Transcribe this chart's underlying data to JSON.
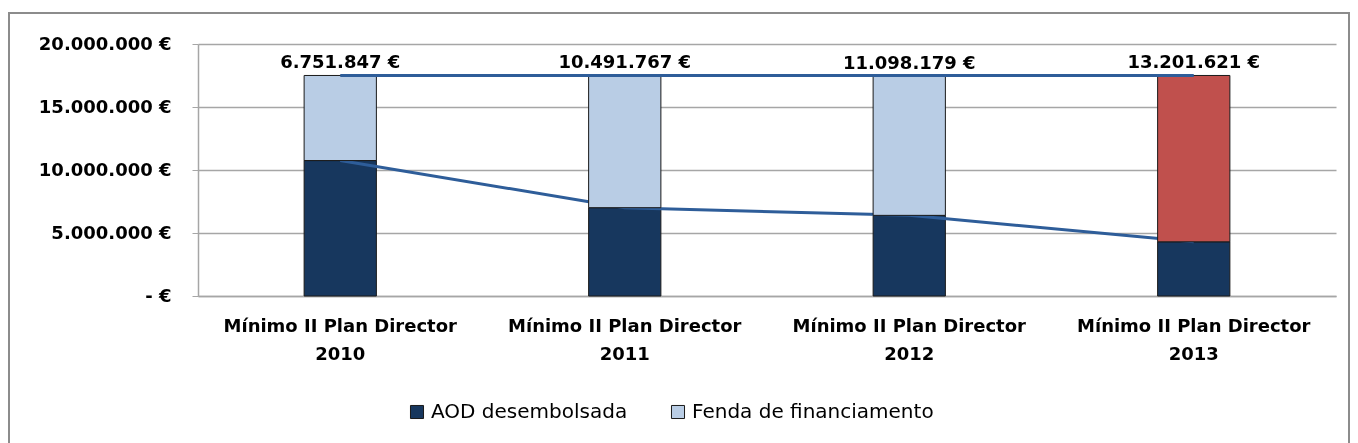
{
  "chart_data": {
    "type": "bar",
    "stacked": true,
    "categories": [
      "Mínimo II Plan Director 2010",
      "Mínimo II Plan Director 2011",
      "Mínimo II Plan Director 2012",
      "Mínimo II Plan Director 2013"
    ],
    "series": [
      {
        "name": "AOD desembolsada",
        "color": "#17375e",
        "values": [
          10750000,
          7010000,
          6400000,
          4300000
        ]
      },
      {
        "type": "line",
        "color": "#2e5d99",
        "values": [
          10750000,
          7010000,
          6400000,
          4300000
        ]
      },
      {
        "name": "Fenda de financiamento",
        "color": "#b9cde5",
        "colors": [
          "#b9cde5",
          "#b9cde5",
          "#b9cde5",
          "#c0504d"
        ],
        "values": [
          6751847,
          10491767,
          11098179,
          13201621
        ],
        "value_labels": [
          "6.751.847 €",
          "10.491.767 €",
          "11.098.179 €",
          "13.201.621 €"
        ]
      },
      {
        "type": "line",
        "color": "#2e5d99",
        "values": [
          17500000,
          17500000,
          17500000,
          17500000
        ]
      }
    ],
    "ylim": [
      0,
      20000000
    ],
    "yticks": [
      {
        "value": 0,
        "label": "- €"
      },
      {
        "value": 5000000,
        "label": "5.000.000 €"
      },
      {
        "value": 10000000,
        "label": "10.000.000 €"
      },
      {
        "value": 15000000,
        "label": "15.000.000 €"
      },
      {
        "value": 20000000,
        "label": "20.000.000 €"
      }
    ],
    "grid": "y",
    "legend": "bottom"
  }
}
